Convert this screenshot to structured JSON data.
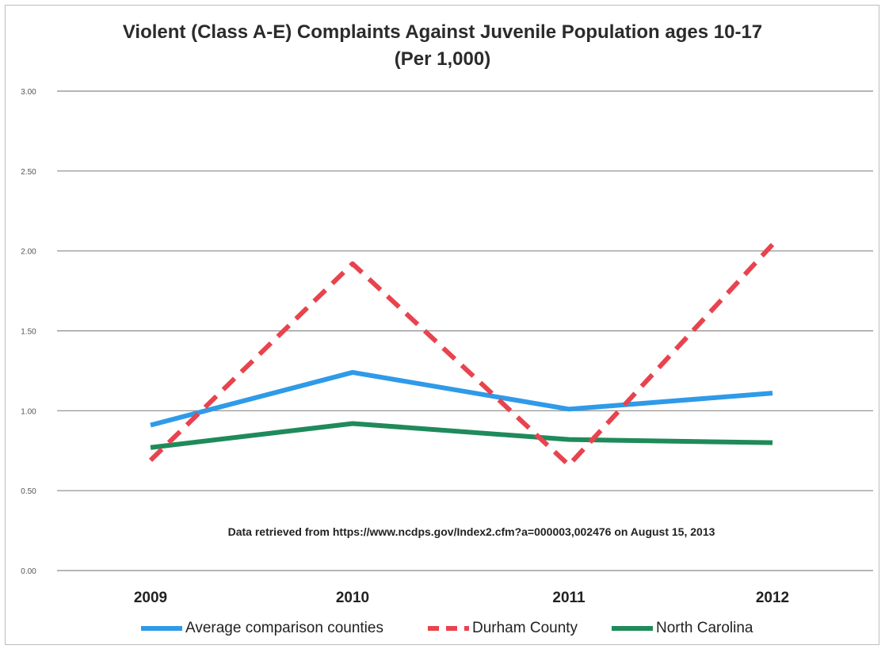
{
  "chart_data": {
    "type": "line",
    "title": "Violent (Class A-E) Complaints Against Juvenile Population ages 10-17",
    "subtitle": "(Per 1,000)",
    "xlabel": "",
    "ylabel": "",
    "categories": [
      "2009",
      "2010",
      "2011",
      "2012"
    ],
    "ylim": [
      0,
      3.0
    ],
    "yticks": [
      0.0,
      0.5,
      1.0,
      1.5,
      2.0,
      2.5,
      3.0
    ],
    "ytick_labels": [
      "0.00",
      "0.50",
      "1.00",
      "1.50",
      "2.00",
      "2.50",
      "3.00"
    ],
    "grid": true,
    "legend_position": "bottom",
    "series": [
      {
        "name": "Average comparison counties",
        "values": [
          0.91,
          1.24,
          1.01,
          1.11
        ],
        "color": "#2f9ae8",
        "style": "solid"
      },
      {
        "name": "Durham County",
        "values": [
          0.69,
          1.92,
          0.66,
          2.04
        ],
        "color": "#e8434e",
        "style": "dashed"
      },
      {
        "name": "North Carolina",
        "values": [
          0.77,
          0.92,
          0.82,
          0.8
        ],
        "color": "#1f8a5a",
        "style": "solid"
      }
    ],
    "annotation": "Data retrieved from https://www.ncdps.gov/Index2.cfm?a=000003,002476 on August 15, 2013"
  }
}
